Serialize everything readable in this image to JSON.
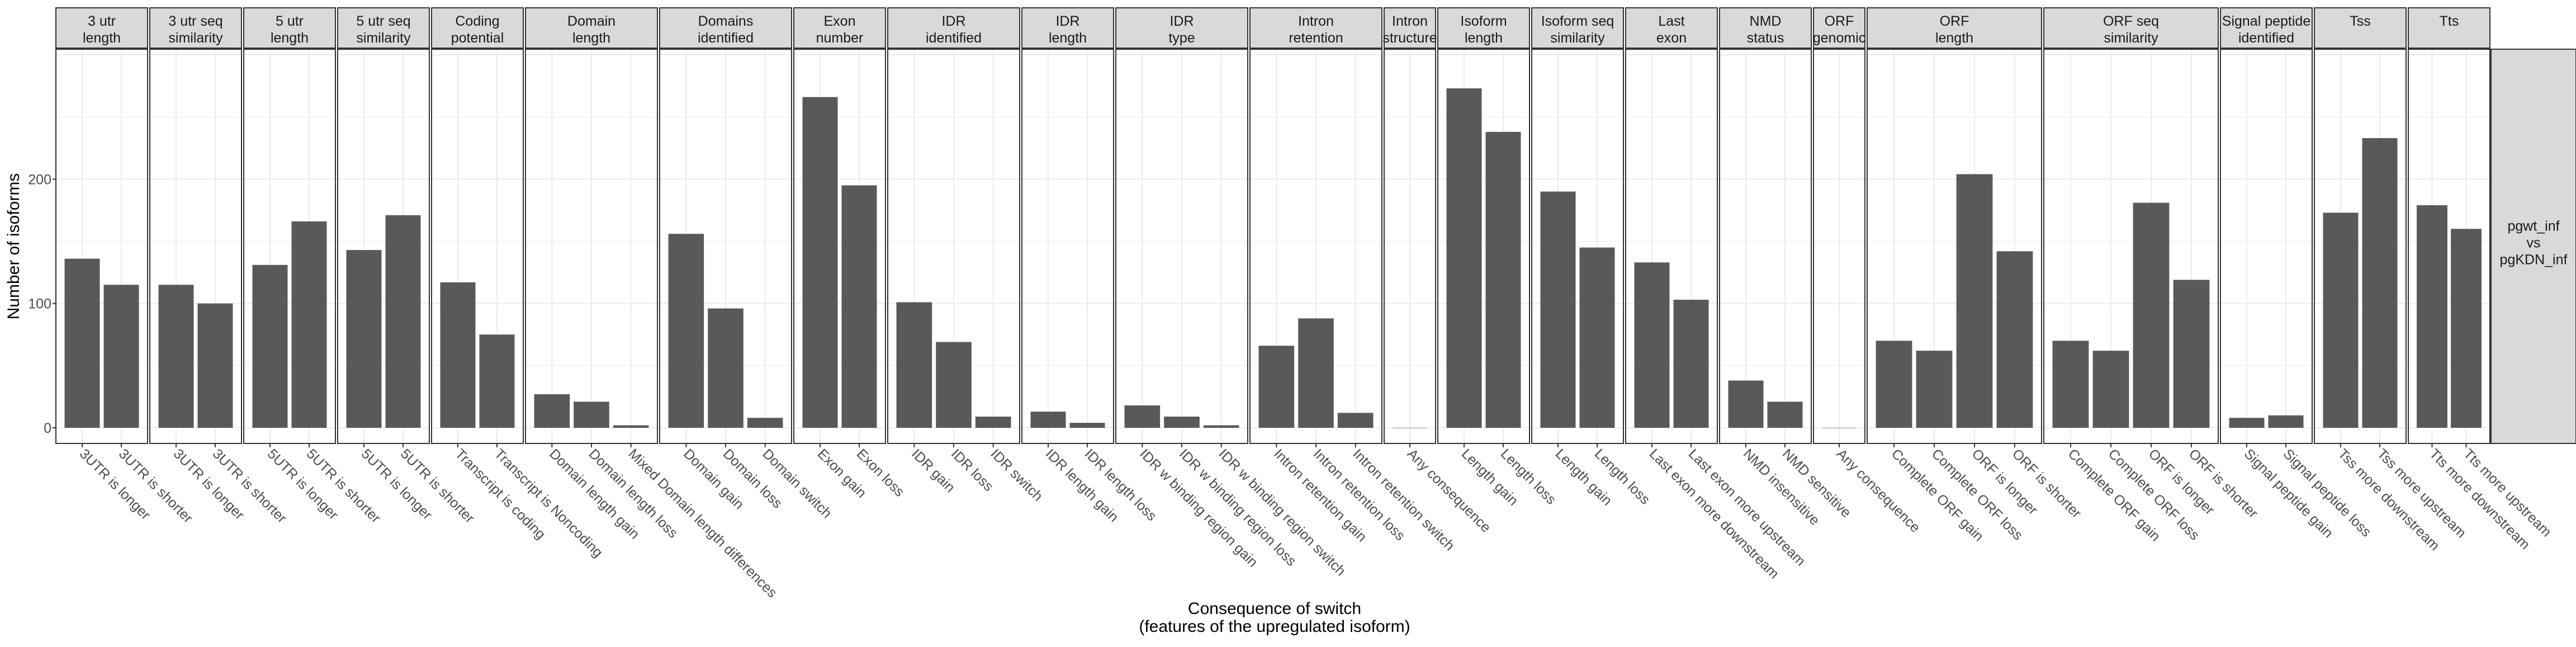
{
  "chart_data": {
    "type": "bar",
    "facet_row_label": "pgwt_inf\nvs\npgKDN_inf",
    "xlabel": "Consequence of switch\n(features of the upregulated isoform)",
    "ylabel": "Number of isoforms",
    "ylim": [
      0,
      300
    ],
    "yticks": [
      0,
      100,
      200
    ],
    "grid": true,
    "bar_color": "#595959",
    "panels": [
      {
        "title": "3 utr\nlength",
        "categories": [
          "3UTR is longer",
          "3UTR is shorter"
        ],
        "values": [
          136,
          115
        ]
      },
      {
        "title": "3 utr seq\nsimilarity",
        "categories": [
          "3UTR is longer",
          "3UTR is shorter"
        ],
        "values": [
          115,
          100
        ]
      },
      {
        "title": "5 utr\nlength",
        "categories": [
          "5UTR is longer",
          "5UTR is shorter"
        ],
        "values": [
          131,
          166
        ]
      },
      {
        "title": "5 utr seq\nsimilarity",
        "categories": [
          "5UTR is longer",
          "5UTR is shorter"
        ],
        "values": [
          143,
          171
        ]
      },
      {
        "title": "Coding\npotential",
        "categories": [
          "Transcript is coding",
          "Transcript is Noncoding"
        ],
        "values": [
          117,
          75
        ]
      },
      {
        "title": "Domain\nlength",
        "categories": [
          "Domain length gain",
          "Domain length loss",
          "Mixed Domain length differences"
        ],
        "values": [
          27,
          21,
          2
        ]
      },
      {
        "title": "Domains\nidentified",
        "categories": [
          "Domain gain",
          "Domain loss",
          "Domain switch"
        ],
        "values": [
          156,
          96,
          8
        ]
      },
      {
        "title": "Exon\nnumber",
        "categories": [
          "Exon gain",
          "Exon loss"
        ],
        "values": [
          266,
          195
        ]
      },
      {
        "title": "IDR\nidentified",
        "categories": [
          "IDR gain",
          "IDR loss",
          "IDR switch"
        ],
        "values": [
          101,
          69,
          9
        ]
      },
      {
        "title": "IDR\nlength",
        "categories": [
          "IDR length gain",
          "IDR length loss"
        ],
        "values": [
          13,
          4
        ]
      },
      {
        "title": "IDR\ntype",
        "categories": [
          "IDR w binding region gain",
          "IDR w binding region loss",
          "IDR w binding region switch"
        ],
        "values": [
          18,
          9,
          2
        ]
      },
      {
        "title": "Intron\nretention",
        "categories": [
          "Intron retention gain",
          "Intron retention loss",
          "Intron retention switch"
        ],
        "values": [
          66,
          88,
          12
        ]
      },
      {
        "title": "Intron\nstructure",
        "categories": [
          "Any consequence"
        ],
        "values": [
          0
        ]
      },
      {
        "title": "Isoform\nlength",
        "categories": [
          "Length gain",
          "Length loss"
        ],
        "values": [
          273,
          238
        ]
      },
      {
        "title": "Isoform seq\nsimilarity",
        "categories": [
          "Length gain",
          "Length loss"
        ],
        "values": [
          190,
          145
        ]
      },
      {
        "title": "Last\nexon",
        "categories": [
          "Last exon more downstream",
          "Last exon more upstream"
        ],
        "values": [
          133,
          103
        ]
      },
      {
        "title": "NMD\nstatus",
        "categories": [
          "NMD insensitive",
          "NMD sensitive"
        ],
        "values": [
          38,
          21
        ]
      },
      {
        "title": "ORF\ngenomic",
        "categories": [
          "Any consequence"
        ],
        "values": [
          0
        ]
      },
      {
        "title": "ORF\nlength",
        "categories": [
          "Complete ORF gain",
          "Complete ORF loss",
          "ORF is longer",
          "ORF is shorter"
        ],
        "values": [
          70,
          62,
          204,
          142
        ]
      },
      {
        "title": "ORF seq\nsimilarity",
        "categories": [
          "Complete ORF gain",
          "Complete ORF loss",
          "ORF is longer",
          "ORF is shorter"
        ],
        "values": [
          70,
          62,
          181,
          119
        ]
      },
      {
        "title": "Signal peptide\nidentified",
        "categories": [
          "Signal peptide gain",
          "Signal peptide loss"
        ],
        "values": [
          8,
          10
        ]
      },
      {
        "title": "Tss",
        "categories": [
          "Tss more downstream",
          "Tss more upstream"
        ],
        "values": [
          173,
          233
        ]
      },
      {
        "title": "Tts",
        "categories": [
          "Tts more downstream",
          "Tts more upstream"
        ],
        "values": [
          179,
          160
        ]
      }
    ]
  }
}
